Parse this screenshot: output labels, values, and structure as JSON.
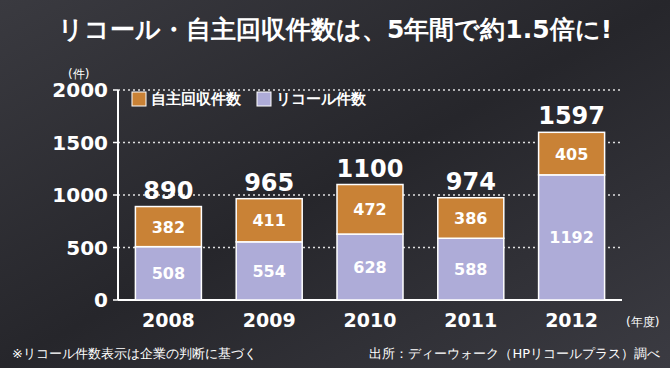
{
  "chart_data": {
    "type": "bar",
    "title": "リコール・自主回収件数は、5年間で約1.5倍に!",
    "y_label": "(件)",
    "x_label": "(年度)",
    "categories": [
      "2008",
      "2009",
      "2010",
      "2011",
      "2012"
    ],
    "series": [
      {
        "name": "リコール件数",
        "color": "#aeacd8",
        "values": [
          508,
          554,
          628,
          588,
          1192
        ]
      },
      {
        "name": "自主回収件数",
        "color": "#c98236",
        "values": [
          382,
          411,
          472,
          386,
          405
        ]
      }
    ],
    "totals": [
      890,
      965,
      1100,
      974,
      1597
    ],
    "ylim": [
      0,
      2000
    ],
    "yticks": [
      0,
      500,
      1000,
      1500,
      2000
    ],
    "grid": true,
    "stacked": true,
    "data_labels": true,
    "legend": "top-left",
    "annotations": [
      "※リコール件数表示は企業の判断に基づく",
      "出所：ディーウォーク（HPリコールプラス）調べ"
    ]
  }
}
